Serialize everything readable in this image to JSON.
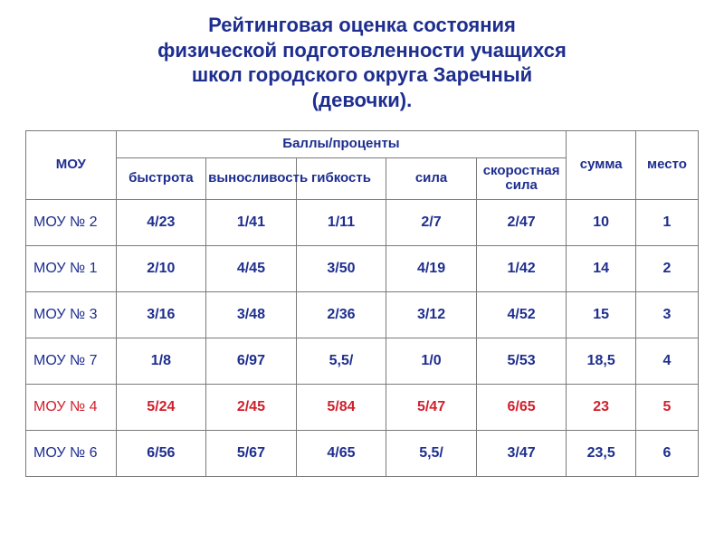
{
  "title_lines": [
    "Рейтинговая оценка состояния",
    "физической подготовленности учащихся",
    "школ городского округа Заречный",
    "(девочки)."
  ],
  "headers": {
    "mou": "МОУ",
    "scores": "Баллы/проценты",
    "sum": "сумма",
    "place": "место",
    "attrs": [
      "быстрота",
      "выносливость",
      "гибкость",
      "сила",
      "скоростная сила"
    ]
  },
  "rows": [
    {
      "label": "МОУ № 2",
      "label_red": false,
      "cells": [
        "4/23",
        "1/41",
        "1/11",
        "2/7",
        "2/47",
        "10",
        "1"
      ],
      "red": false
    },
    {
      "label": "МОУ № 1",
      "label_red": false,
      "cells": [
        "2/10",
        "4/45",
        "3/50",
        "4/19",
        "1/42",
        "14",
        "2"
      ],
      "red": false
    },
    {
      "label": "МОУ № 3",
      "label_red": false,
      "cells": [
        "3/16",
        "3/48",
        "2/36",
        "3/12",
        "4/52",
        "15",
        "3"
      ],
      "red": false
    },
    {
      "label": "МОУ № 7",
      "label_red": false,
      "cells": [
        "1/8",
        "6/97",
        "5,5/",
        "1/0",
        "5/53",
        "18,5",
        "4"
      ],
      "red": false
    },
    {
      "label": "МОУ № 4",
      "label_red": true,
      "cells": [
        "5/24",
        "2/45",
        "5/84",
        "5/47",
        "6/65",
        "23",
        "5"
      ],
      "red": true
    },
    {
      "label": "МОУ № 6",
      "label_red": false,
      "cells": [
        "6/56",
        "5/67",
        "4/65",
        "5,5/",
        "3/47",
        "23,5",
        "6"
      ],
      "red": false
    }
  ]
}
